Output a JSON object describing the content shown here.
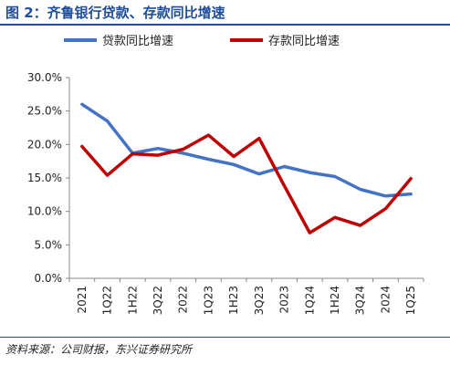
{
  "figure": {
    "title": "图 2：齐鲁银行贷款、存款同比增速",
    "source": "资料来源：公司财报，东兴证券研究所"
  },
  "chart_data": {
    "type": "line",
    "categories": [
      "2021",
      "1Q22",
      "1H22",
      "3Q22",
      "2022",
      "1Q23",
      "1H23",
      "3Q23",
      "2023",
      "1Q24",
      "1H24",
      "3Q24",
      "2024",
      "1Q25"
    ],
    "series": [
      {
        "name": "贷款同比增速",
        "color": "#4472c4",
        "values": [
          26.0,
          23.5,
          18.7,
          19.4,
          18.7,
          17.8,
          17.0,
          15.6,
          16.7,
          15.8,
          15.2,
          13.3,
          12.3,
          12.6
        ]
      },
      {
        "name": "存款同比增速",
        "color": "#c00000",
        "values": [
          19.7,
          15.4,
          18.6,
          18.4,
          19.3,
          21.4,
          18.2,
          20.9,
          13.8,
          6.8,
          9.1,
          7.9,
          10.4,
          14.9
        ]
      }
    ],
    "y_ticks": [
      "0.0%",
      "5.0%",
      "10.0%",
      "15.0%",
      "20.0%",
      "25.0%",
      "30.0%"
    ],
    "ylim": [
      0,
      30
    ],
    "legend_position": "top",
    "grid": false
  }
}
